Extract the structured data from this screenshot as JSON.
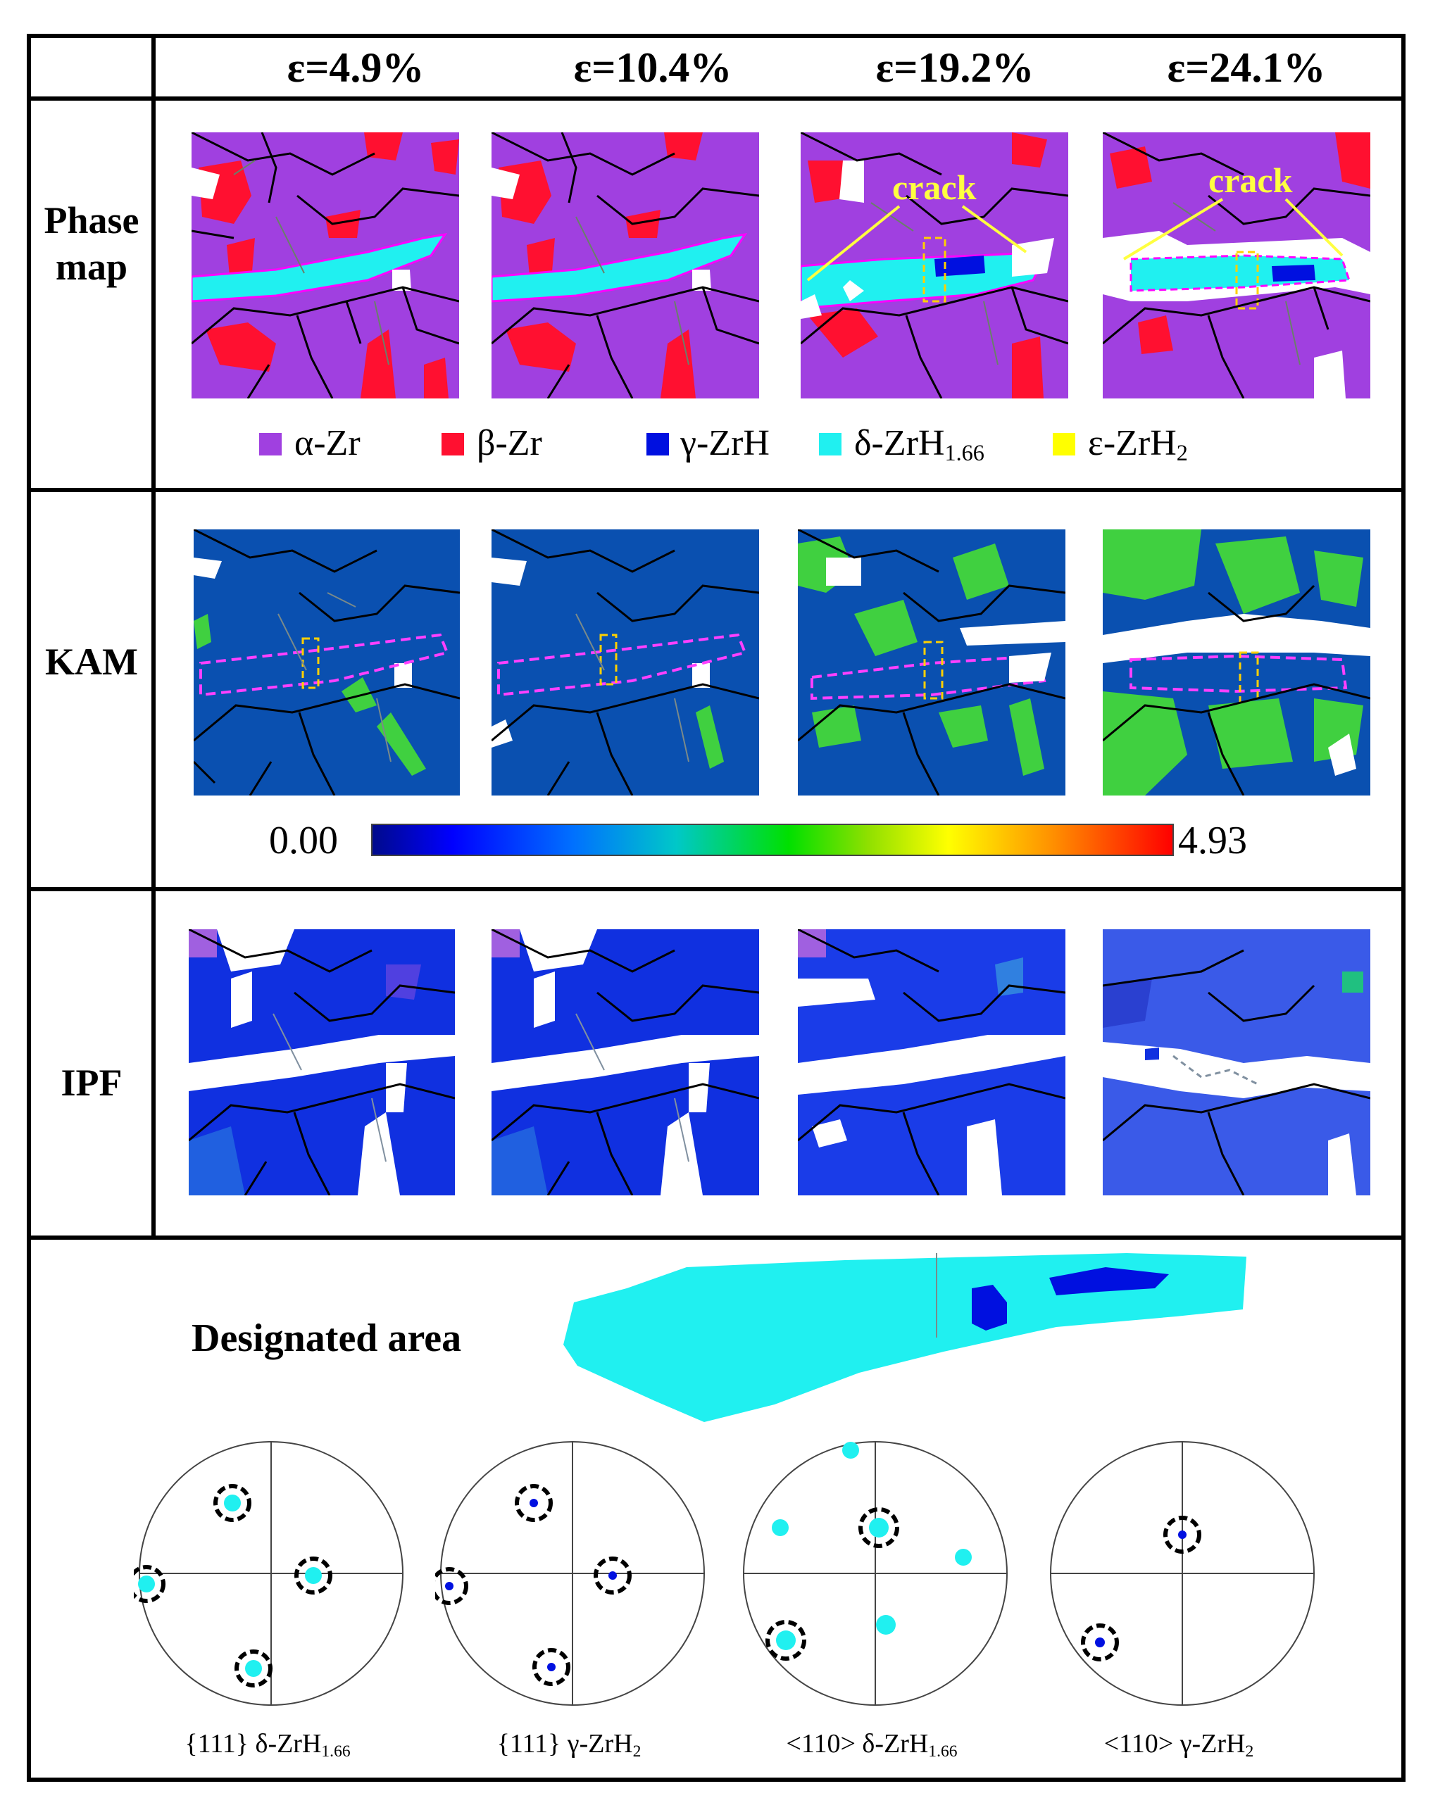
{
  "strains": [
    "ε=4.9%",
    "ε=10.4%",
    "ε=19.2%",
    "ε=24.1%"
  ],
  "rows": {
    "phase_map": [
      "Phase",
      "map"
    ],
    "kam": "KAM",
    "ipf": "IPF",
    "designated": "Designated area"
  },
  "annotations": {
    "crack": "crack"
  },
  "phase_legend": {
    "alpha": {
      "label": "α-Zr",
      "color": "#a040e0"
    },
    "beta": {
      "label": "β-Zr",
      "color": "#ff1030"
    },
    "gamma": {
      "label": "γ-ZrH",
      "color": "#0010e0"
    },
    "delta": {
      "label": "δ-ZrH",
      "sub": "1.66",
      "color": "#20f0f0"
    },
    "epsilon": {
      "label": "ε-ZrH",
      "sub": "2",
      "color": "#ffff00"
    }
  },
  "kam_scale": {
    "min": "0.00",
    "max": "4.93"
  },
  "pole_figures": [
    {
      "prefix": "{111} δ-ZrH",
      "sub": "1.66"
    },
    {
      "prefix": "{111} γ-ZrH",
      "sub": "2"
    },
    {
      "prefix": "<110> δ-ZrH",
      "sub": "1.66"
    },
    {
      "prefix": "<110> γ-ZrH",
      "sub": "2"
    }
  ]
}
